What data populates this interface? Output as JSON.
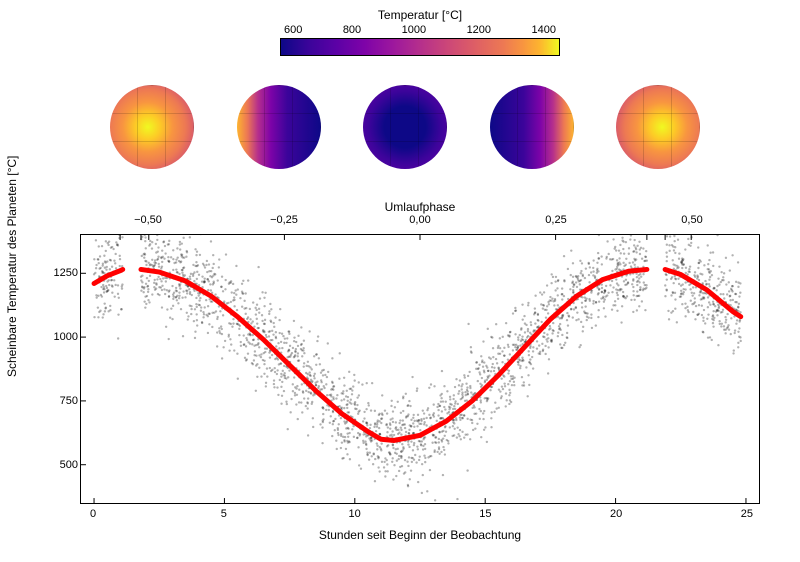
{
  "colorbar": {
    "title": "Temperatur [°C]",
    "ticks": [
      600,
      800,
      1000,
      1200,
      1400
    ],
    "gradient_stops": [
      "#0d0887",
      "#3b049a",
      "#5c01a6",
      "#7e03a8",
      "#9c179e",
      "#b52f8c",
      "#cc4778",
      "#de5f65",
      "#ed7953",
      "#f89540",
      "#fdb42f",
      "#f0f921"
    ]
  },
  "spheres": {
    "count": 5,
    "gradients": [
      "radial-gradient(circle at 45% 50%,#f0f921 0%,#fdca26 20%,#f89540 40%,#ed7953 60%,#cc4778 85%,#9c179e 100%)",
      "linear-gradient(90deg,#fdb42f 0%,#ed7953 12%,#b52f8c 25%,#7e03a8 40%,#3b049a 60%,#0d0887 100%)",
      "radial-gradient(circle at 50% 50%,#0d0887 0%,#0d0887 35%,#3b049a 60%,#5c01a6 85%,#7e03a8 100%)",
      "linear-gradient(90deg,#0d0887 0%,#3b049a 40%,#7e03a8 60%,#b52f8c 75%,#ed7953 88%,#fdb42f 100%)",
      "radial-gradient(circle at 55% 50%,#f0f921 0%,#fdca26 20%,#f89540 40%,#ed7953 60%,#cc4778 85%,#9c179e 100%)"
    ]
  },
  "phase_axis": {
    "title": "Umlaufphase",
    "ticks": [
      {
        "label": "−0,50",
        "x_pct": 10
      },
      {
        "label": "−0,25",
        "x_pct": 30
      },
      {
        "label": "0,00",
        "x_pct": 50
      },
      {
        "label": "0,25",
        "x_pct": 70
      },
      {
        "label": "0,50",
        "x_pct": 90
      }
    ]
  },
  "chart": {
    "type": "scatter+line",
    "background_color": "#ffffff",
    "x_axis": {
      "label": "Stunden seit Beginn der Beobachtung",
      "xlim": [
        -0.5,
        25.5
      ],
      "ticks": [
        0,
        5,
        10,
        15,
        20,
        25
      ],
      "fontsize": 11
    },
    "y_axis": {
      "label": "Scheinbare Temperatur des Planeten [°C]",
      "ylim": [
        350,
        1400
      ],
      "ticks": [
        500,
        750,
        1000,
        1250
      ],
      "fontsize": 11
    },
    "scatter": {
      "color": "#000000",
      "opacity": 0.3,
      "point_radius": 1.2,
      "n_points": 2800,
      "noise_sigma": 85
    },
    "fit_curve": {
      "color": "#ff0000",
      "line_width": 5,
      "gap_start_x": 1.1,
      "gap_end_x": 1.8,
      "gap2_start_x": 21.2,
      "gap2_end_x": 21.9,
      "xy": [
        [
          0.0,
          1210
        ],
        [
          0.5,
          1240
        ],
        [
          1.0,
          1260
        ],
        [
          1.1,
          1265
        ],
        [
          1.8,
          1265
        ],
        [
          2.5,
          1255
        ],
        [
          3.5,
          1220
        ],
        [
          4.5,
          1160
        ],
        [
          5.5,
          1080
        ],
        [
          6.5,
          990
        ],
        [
          7.5,
          890
        ],
        [
          8.5,
          790
        ],
        [
          9.5,
          700
        ],
        [
          10.5,
          630
        ],
        [
          11.0,
          600
        ],
        [
          11.5,
          595
        ],
        [
          12.5,
          615
        ],
        [
          13.5,
          670
        ],
        [
          14.5,
          750
        ],
        [
          15.5,
          850
        ],
        [
          16.5,
          960
        ],
        [
          17.5,
          1070
        ],
        [
          18.5,
          1160
        ],
        [
          19.5,
          1225
        ],
        [
          20.5,
          1258
        ],
        [
          21.2,
          1265
        ],
        [
          21.9,
          1265
        ],
        [
          22.5,
          1245
        ],
        [
          23.5,
          1185
        ],
        [
          24.5,
          1100
        ],
        [
          24.8,
          1080
        ]
      ]
    },
    "top_tick_marks_x": [
      1.0,
      1.8,
      21.2,
      21.9
    ]
  }
}
